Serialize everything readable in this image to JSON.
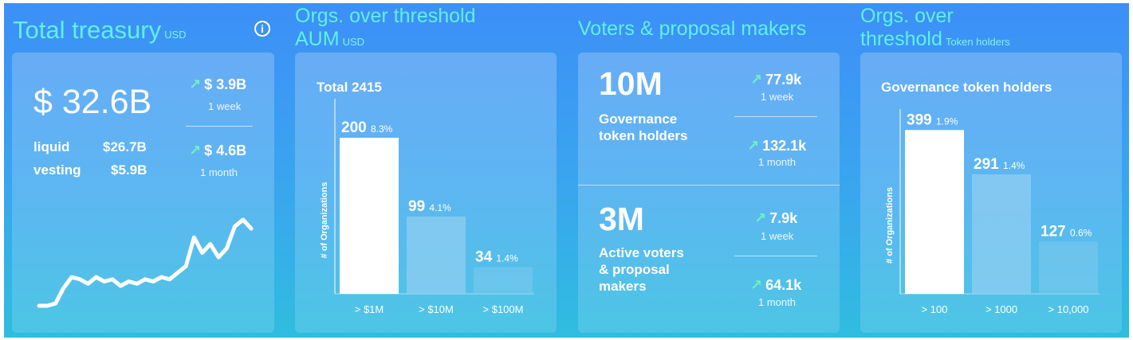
{
  "treasury": {
    "title": "Total treasury",
    "unit": "USD",
    "total": "$ 32.6B",
    "week_change": "$ 3.9B",
    "week_label": "1 week",
    "month_change": "$ 4.6B",
    "month_label": "1 month",
    "liquid_label": "liquid",
    "liquid_value": "$26.7B",
    "vesting_label": "vesting",
    "vesting_value": "$5.9B",
    "arrow": "↗"
  },
  "aum": {
    "title_line1": "Orgs. over threshold",
    "title_line2": "AUM",
    "unit": "USD",
    "total": "Total 2415",
    "ylabel": "# of Organizations"
  },
  "voters": {
    "title": "Voters & proposal makers",
    "holders_value": "10M",
    "holders_label_1": "Governance",
    "holders_label_2": "token holders",
    "holders_week": "77.9k",
    "holders_week_label": "1 week",
    "holders_month": "132.1k",
    "holders_month_label": "1 month",
    "active_value": "3M",
    "active_label_1": "Active voters",
    "active_label_2": "& proposal",
    "active_label_3": "makers",
    "active_week": "7.9k",
    "active_week_label": "1 week",
    "active_month": "64.1k",
    "active_month_label": "1 month",
    "arrow": "↗"
  },
  "holders": {
    "title_line1": "Orgs. over",
    "title_line2": "threshold",
    "unit": "Token holders",
    "subtitle": "Governance token holders",
    "ylabel": "# of Organizations"
  },
  "colors": {
    "bar_primary": "#ffffff",
    "bar_secondary": "#8fcdf1",
    "bar_tertiary": "#7cc8ee",
    "title": "#5ff0e6",
    "up_arrow": "#6ff2c2"
  },
  "chart_data": [
    {
      "type": "bar",
      "title": "Total 2415",
      "ylabel": "# of Organizations",
      "categories": [
        "> $1M",
        "> $10M",
        "> $100M"
      ],
      "values": [
        200,
        99,
        34
      ],
      "percent_labels": [
        "8.3%",
        "4.1%",
        "1.4%"
      ],
      "ylim": [
        0,
        250
      ]
    },
    {
      "type": "bar",
      "title": "Governance token holders",
      "ylabel": "# of Organizations",
      "categories": [
        "> 100",
        "> 1000",
        "> 10,000"
      ],
      "values": [
        399,
        291,
        127
      ],
      "percent_labels": [
        "1.9%",
        "1.4%",
        "0.6%"
      ],
      "ylim": [
        0,
        450
      ]
    },
    {
      "type": "line",
      "values": [
        1,
        1,
        2,
        9,
        14,
        13,
        11,
        14,
        12,
        13,
        10,
        12,
        11,
        13,
        12,
        14,
        13,
        16,
        19,
        32,
        25,
        29,
        23,
        27,
        37,
        40,
        36
      ]
    }
  ]
}
